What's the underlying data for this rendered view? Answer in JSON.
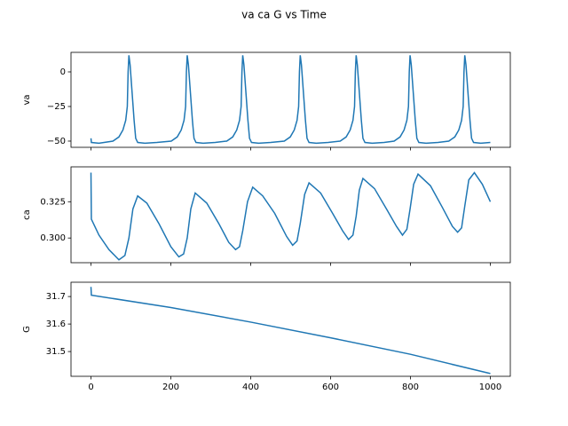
{
  "title": "va ca G vs Time",
  "chart_data": [
    {
      "type": "line",
      "ylabel": "va",
      "color": "#1f77b4",
      "xlim": [
        -50,
        1050
      ],
      "ylim": [
        -54.5,
        14.1
      ],
      "yticks": [
        {
          "value": 0,
          "label": "0"
        },
        {
          "value": -25,
          "label": "−25"
        },
        {
          "value": -50,
          "label": "−50"
        }
      ],
      "x": [
        0,
        1,
        20,
        55,
        70,
        80,
        87,
        91,
        93,
        95,
        98,
        103,
        108,
        112,
        117,
        135,
        165,
        201,
        216,
        226,
        233,
        237,
        239,
        241,
        244,
        249,
        254,
        258,
        263,
        281,
        311,
        340,
        355,
        365,
        372,
        376,
        378,
        380,
        383,
        388,
        393,
        397,
        402,
        420,
        450,
        484,
        499,
        509,
        516,
        520,
        522,
        524,
        527,
        532,
        537,
        541,
        546,
        564,
        594,
        624,
        639,
        649,
        656,
        660,
        662,
        664,
        667,
        672,
        677,
        681,
        686,
        704,
        734,
        759,
        774,
        784,
        791,
        795,
        797,
        799,
        802,
        807,
        812,
        816,
        821,
        839,
        869,
        896,
        911,
        921,
        928,
        932,
        934,
        936,
        939,
        944,
        949,
        953,
        958,
        976,
        1000
      ],
      "values": [
        -48,
        -51,
        -51.5,
        -50,
        -47,
        -42,
        -35,
        -25,
        0,
        12,
        5,
        -15,
        -35,
        -48,
        -51,
        -51.5,
        -51,
        -50,
        -47,
        -42,
        -35,
        -25,
        0,
        12,
        5,
        -15,
        -35,
        -48,
        -51,
        -51.5,
        -51,
        -50,
        -47,
        -42,
        -35,
        -25,
        0,
        12,
        5,
        -15,
        -35,
        -48,
        -51,
        -51.5,
        -51,
        -50,
        -47,
        -42,
        -35,
        -25,
        0,
        12,
        5,
        -15,
        -35,
        -48,
        -51,
        -51.5,
        -51,
        -50,
        -47,
        -42,
        -35,
        -25,
        0,
        12,
        5,
        -15,
        -35,
        -48,
        -51,
        -51.5,
        -51,
        -50,
        -47,
        -42,
        -35,
        -25,
        0,
        12,
        5,
        -15,
        -35,
        -48,
        -51,
        -51.5,
        -51,
        -50,
        -47,
        -42,
        -35,
        -25,
        0,
        12,
        5,
        -15,
        -35,
        -48,
        -51,
        -51.5,
        -51
      ]
    },
    {
      "type": "line",
      "ylabel": "ca",
      "color": "#1f77b4",
      "xlim": [
        -50,
        1050
      ],
      "ylim": [
        0.283,
        0.349
      ],
      "yticks": [
        0.325,
        {
          "value": 0.3,
          "label": "0.300"
        }
      ],
      "x": [
        0,
        1,
        20,
        45,
        70,
        85,
        95,
        105,
        117,
        140,
        170,
        200,
        220,
        232,
        241,
        250,
        261,
        290,
        320,
        345,
        362,
        372,
        380,
        392,
        405,
        430,
        460,
        490,
        505,
        516,
        524,
        535,
        546,
        575,
        605,
        630,
        645,
        656,
        664,
        672,
        681,
        710,
        740,
        765,
        780,
        791,
        799,
        808,
        819,
        850,
        880,
        905,
        918,
        928,
        936,
        946,
        960,
        980,
        1000
      ],
      "values": [
        0.345,
        0.313,
        0.302,
        0.292,
        0.285,
        0.288,
        0.3,
        0.32,
        0.329,
        0.324,
        0.31,
        0.294,
        0.287,
        0.289,
        0.3,
        0.32,
        0.331,
        0.324,
        0.31,
        0.297,
        0.292,
        0.294,
        0.305,
        0.325,
        0.335,
        0.329,
        0.317,
        0.301,
        0.295,
        0.298,
        0.31,
        0.33,
        0.338,
        0.331,
        0.317,
        0.305,
        0.299,
        0.302,
        0.315,
        0.333,
        0.341,
        0.334,
        0.32,
        0.308,
        0.302,
        0.306,
        0.32,
        0.337,
        0.344,
        0.336,
        0.321,
        0.308,
        0.304,
        0.307,
        0.322,
        0.34,
        0.345,
        0.337,
        0.325
      ]
    },
    {
      "type": "line",
      "ylabel": "G",
      "color": "#1f77b4",
      "xlim": [
        -50,
        1050
      ],
      "ylim": [
        31.41,
        31.752
      ],
      "xticks": [
        0,
        200,
        400,
        600,
        800,
        1000
      ],
      "yticks": [
        31.5,
        31.6,
        31.7
      ],
      "x": [
        0,
        1,
        200,
        400,
        600,
        800,
        1000
      ],
      "values": [
        31.735,
        31.705,
        31.66,
        31.607,
        31.55,
        31.49,
        31.42
      ]
    }
  ]
}
